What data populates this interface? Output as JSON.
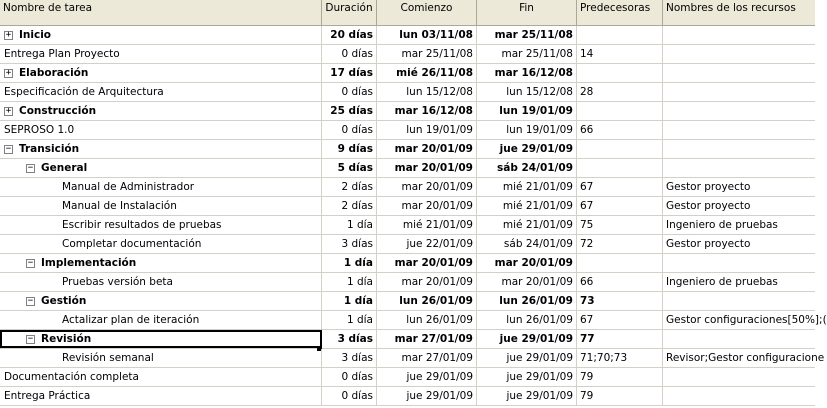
{
  "columns": {
    "name": "Nombre de tarea",
    "duration": "Duración",
    "start": "Comienzo",
    "finish": "Fin",
    "predecessors": "Predecesoras",
    "resources": "Nombres de los recursos"
  },
  "rows": [
    {
      "level": 0,
      "toggle": "+",
      "summary": true,
      "name": "Inicio",
      "duration": "20 días",
      "start": "lun 03/11/08",
      "finish": "mar 25/11/08",
      "pred": "",
      "res": ""
    },
    {
      "level": 0,
      "toggle": "",
      "summary": false,
      "name": "Entrega Plan Proyecto",
      "duration": "0 días",
      "start": "mar 25/11/08",
      "finish": "mar 25/11/08",
      "pred": "14",
      "res": ""
    },
    {
      "level": 0,
      "toggle": "+",
      "summary": true,
      "name": "Elaboración",
      "duration": "17 días",
      "start": "mié 26/11/08",
      "finish": "mar 16/12/08",
      "pred": "",
      "res": ""
    },
    {
      "level": 0,
      "toggle": "",
      "summary": false,
      "name": "Especificación de Arquitectura",
      "duration": "0 días",
      "start": "lun 15/12/08",
      "finish": "lun 15/12/08",
      "pred": "28",
      "res": ""
    },
    {
      "level": 0,
      "toggle": "+",
      "summary": true,
      "name": "Construcción",
      "duration": "25 días",
      "start": "mar 16/12/08",
      "finish": "lun 19/01/09",
      "pred": "",
      "res": ""
    },
    {
      "level": 0,
      "toggle": "",
      "summary": false,
      "name": "SEPROSO 1.0",
      "duration": "0 días",
      "start": "lun 19/01/09",
      "finish": "lun 19/01/09",
      "pred": "66",
      "res": ""
    },
    {
      "level": 0,
      "toggle": "−",
      "summary": true,
      "name": "Transición",
      "duration": "9 días",
      "start": "mar 20/01/09",
      "finish": "jue 29/01/09",
      "pred": "",
      "res": ""
    },
    {
      "level": 1,
      "toggle": "−",
      "summary": true,
      "name": "General",
      "duration": "5 días",
      "start": "mar 20/01/09",
      "finish": "sáb 24/01/09",
      "pred": "",
      "res": ""
    },
    {
      "level": 2,
      "toggle": "",
      "summary": false,
      "name": "Manual de Administrador",
      "duration": "2 días",
      "start": "mar 20/01/09",
      "finish": "mié 21/01/09",
      "pred": "67",
      "res": "Gestor proyecto"
    },
    {
      "level": 2,
      "toggle": "",
      "summary": false,
      "name": "Manual de Instalación",
      "duration": "2 días",
      "start": "mar 20/01/09",
      "finish": "mié 21/01/09",
      "pred": "67",
      "res": "Gestor proyecto"
    },
    {
      "level": 2,
      "toggle": "",
      "summary": false,
      "name": "Escribir resultados de pruebas",
      "duration": "1 día",
      "start": "mié 21/01/09",
      "finish": "mié 21/01/09",
      "pred": "75",
      "res": "Ingeniero de pruebas"
    },
    {
      "level": 2,
      "toggle": "",
      "summary": false,
      "name": "Completar documentación",
      "duration": "3 días",
      "start": "jue 22/01/09",
      "finish": "sáb 24/01/09",
      "pred": "72",
      "res": "Gestor proyecto"
    },
    {
      "level": 1,
      "toggle": "−",
      "summary": true,
      "name": "Implementación",
      "duration": "1 día",
      "start": "mar 20/01/09",
      "finish": "mar 20/01/09",
      "pred": "",
      "res": ""
    },
    {
      "level": 2,
      "toggle": "",
      "summary": false,
      "name": "Pruebas versión beta",
      "duration": "1 día",
      "start": "mar 20/01/09",
      "finish": "mar 20/01/09",
      "pred": "66",
      "res": "Ingeniero de pruebas"
    },
    {
      "level": 1,
      "toggle": "−",
      "summary": true,
      "name": "Gestión",
      "duration": "1 día",
      "start": "lun 26/01/09",
      "finish": "lun 26/01/09",
      "pred": "73",
      "res": ""
    },
    {
      "level": 2,
      "toggle": "",
      "summary": false,
      "name": "Actalizar plan de iteración",
      "duration": "1 día",
      "start": "lun 26/01/09",
      "finish": "lun 26/01/09",
      "pred": "67",
      "res": "Gestor configuraciones[50%];("
    },
    {
      "level": 1,
      "toggle": "−",
      "summary": true,
      "selected": true,
      "name": "Revisión",
      "duration": "3 días",
      "start": "mar 27/01/09",
      "finish": "jue 29/01/09",
      "pred": "77",
      "res": ""
    },
    {
      "level": 2,
      "toggle": "",
      "summary": false,
      "name": "Revisión semanal",
      "duration": "3 días",
      "start": "mar 27/01/09",
      "finish": "jue 29/01/09",
      "pred": "71;70;73",
      "res": "Revisor;Gestor configuracione"
    },
    {
      "level": 0,
      "toggle": "",
      "summary": false,
      "name": "Documentación completa",
      "duration": "0 días",
      "start": "jue 29/01/09",
      "finish": "jue 29/01/09",
      "pred": "79",
      "res": ""
    },
    {
      "level": 0,
      "toggle": "",
      "summary": false,
      "name": "Entrega Práctica",
      "duration": "0 días",
      "start": "jue 29/01/09",
      "finish": "jue 29/01/09",
      "pred": "79",
      "res": ""
    }
  ]
}
